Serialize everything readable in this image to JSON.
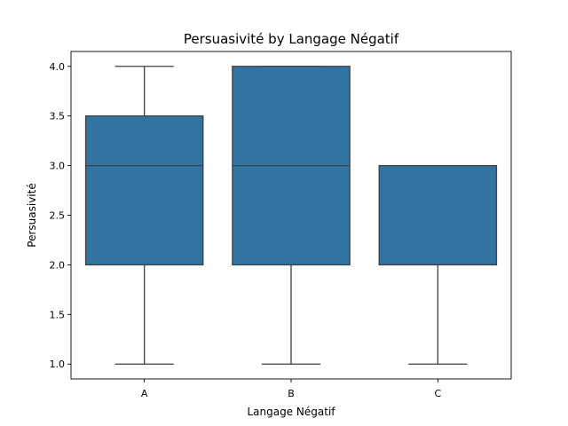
{
  "chart_data": {
    "type": "box",
    "title": "Persuasivité by Langage Négatif",
    "xlabel": "Langage Négatif",
    "ylabel": "Persuasivité",
    "categories": [
      "A",
      "B",
      "C"
    ],
    "boxes": [
      {
        "category": "A",
        "min": 1.0,
        "q1": 2.0,
        "median": 3.0,
        "q3": 3.5,
        "max": 4.0
      },
      {
        "category": "B",
        "min": 1.0,
        "q1": 2.0,
        "median": 3.0,
        "q3": 4.0,
        "max": 4.0
      },
      {
        "category": "C",
        "min": 1.0,
        "q1": 2.0,
        "median": 2.0,
        "q3": 3.0,
        "max": 3.0
      }
    ],
    "yticks": [
      "1.0",
      "1.5",
      "2.0",
      "2.5",
      "3.0",
      "3.5",
      "4.0"
    ],
    "ylim": [
      0.85,
      4.15
    ],
    "grid": false,
    "colors": {
      "box_fill": "#3274a1",
      "line": "#3f3f3f",
      "axes": "#000000"
    }
  }
}
